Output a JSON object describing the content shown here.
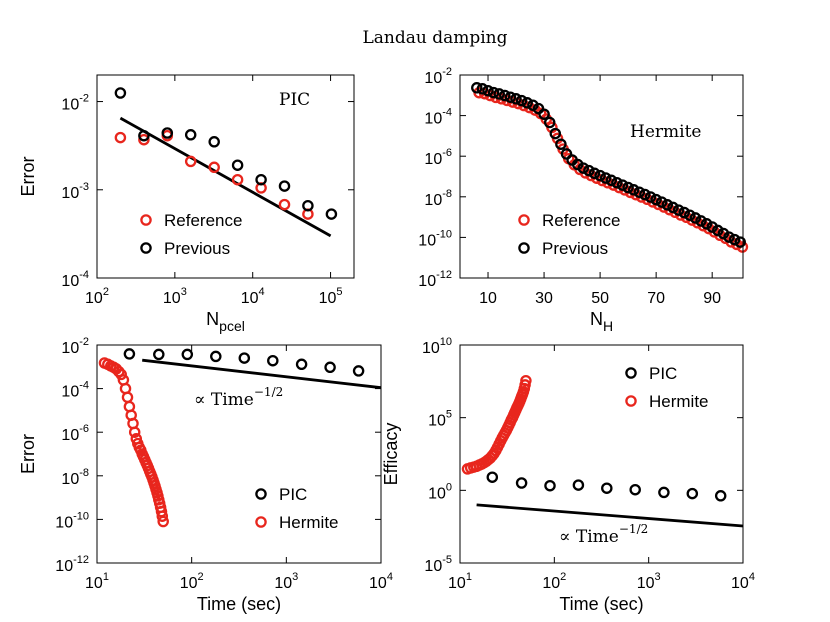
{
  "figure_title": "Landau damping",
  "colors": {
    "red": "#e8261d",
    "black": "#000000"
  },
  "chart_data": [
    {
      "id": "pic_error",
      "type": "scatter",
      "xscale": "log",
      "yscale": "log",
      "xlim": [
        100,
        200000
      ],
      "ylim": [
        0.0001,
        0.02
      ],
      "xticks": [
        100,
        1000,
        10000,
        100000
      ],
      "xtick_labels": [
        {
          "base": "10",
          "exp": "2"
        },
        {
          "base": "10",
          "exp": "3"
        },
        {
          "base": "10",
          "exp": "4"
        },
        {
          "base": "10",
          "exp": "5"
        }
      ],
      "yticks": [
        0.0001,
        0.001,
        0.01
      ],
      "ytick_labels": [
        {
          "base": "10",
          "exp": "-4"
        },
        {
          "base": "10",
          "exp": "-3"
        },
        {
          "base": "10",
          "exp": "-2"
        }
      ],
      "xlabel": {
        "main": "N",
        "sub": "pcel"
      },
      "ylabel": "Error",
      "annotation": "PIC",
      "legend": {
        "position": "bottom-left",
        "entries": [
          "Reference",
          "Previous"
        ]
      },
      "series": [
        {
          "name": "Reference",
          "color": "red",
          "x": [
            200,
            400,
            800,
            1600,
            3200,
            6400,
            12800,
            25600,
            51200
          ],
          "y": [
            0.0039,
            0.0037,
            0.0041,
            0.0021,
            0.0018,
            0.0013,
            0.00105,
            0.00068,
            0.00053
          ]
        },
        {
          "name": "Previous",
          "color": "black",
          "x": [
            200,
            400,
            800,
            1600,
            3200,
            6400,
            12800,
            25600,
            51200,
            102400
          ],
          "y": [
            0.0125,
            0.0041,
            0.0044,
            0.0042,
            0.0035,
            0.0019,
            0.0013,
            0.0011,
            0.00066,
            0.00053
          ]
        }
      ],
      "lines": [
        {
          "x": [
            200,
            100000
          ],
          "y": [
            0.0065,
            0.0003
          ]
        }
      ]
    },
    {
      "id": "hermite_error",
      "type": "scatter",
      "xscale": "linear",
      "yscale": "log",
      "xlim": [
        0,
        101
      ],
      "ylim": [
        1e-12,
        0.01
      ],
      "xticks": [
        10,
        30,
        50,
        70,
        90
      ],
      "xtick_labels": [
        "10",
        "30",
        "50",
        "70",
        "90"
      ],
      "yticks": [
        1e-12,
        1e-10,
        1e-08,
        1e-06,
        0.0001,
        0.01
      ],
      "ytick_labels": [
        {
          "base": "10",
          "exp": "-12"
        },
        {
          "base": "10",
          "exp": "-10"
        },
        {
          "base": "10",
          "exp": "-8"
        },
        {
          "base": "10",
          "exp": "-6"
        },
        {
          "base": "10",
          "exp": "-4"
        },
        {
          "base": "10",
          "exp": "-2"
        }
      ],
      "xlabel": {
        "main": "N",
        "sub": "H"
      },
      "ylabel": "",
      "annotation": "Hermite",
      "legend": {
        "position": "bottom-left",
        "entries": [
          "Reference",
          "Previous"
        ]
      },
      "curve": {
        "x": [
          6,
          8,
          10,
          12,
          14,
          16,
          18,
          20,
          22,
          24,
          26,
          28,
          30,
          32,
          34,
          36,
          38,
          40,
          42,
          44,
          46,
          48,
          50,
          52,
          54,
          56,
          58,
          60,
          62,
          64,
          66,
          68,
          70,
          72,
          74,
          76,
          78,
          80,
          82,
          84,
          86,
          88,
          90,
          92,
          94,
          96,
          98,
          100
        ],
        "y": [
          0.0018,
          0.0016,
          0.0013,
          0.00105,
          0.0009,
          0.00075,
          0.00062,
          0.00052,
          0.00042,
          0.00033,
          0.00025,
          0.00017,
          9e-05,
          3.5e-05,
          1e-05,
          3e-06,
          1e-06,
          5e-07,
          3e-07,
          2e-07,
          1.5e-07,
          1.1e-07,
          8.5e-08,
          6.5e-08,
          5e-08,
          3.8e-08,
          2.9e-08,
          2.2e-08,
          1.7e-08,
          1.3e-08,
          1e-08,
          7.5e-09,
          5.6e-09,
          4.2e-09,
          3.1e-09,
          2.3e-09,
          1.7e-09,
          1.3e-09,
          9.5e-10,
          7e-10,
          5e-10,
          3.6e-10,
          2.5e-10,
          1.7e-10,
          1.2e-10,
          8e-11,
          6e-11,
          4.5e-11
        ]
      },
      "series": [
        {
          "name": "Reference",
          "color": "red",
          "x_offset": 0.8,
          "y_factor": 0.75
        },
        {
          "name": "Previous",
          "color": "black",
          "x_offset": 0,
          "y_factor": 1.3
        }
      ]
    },
    {
      "id": "time_error",
      "type": "scatter",
      "xscale": "log",
      "yscale": "log",
      "xlim": [
        10,
        10000
      ],
      "ylim": [
        1e-12,
        0.01
      ],
      "xticks": [
        10,
        100,
        1000,
        10000
      ],
      "xtick_labels": [
        {
          "base": "10",
          "exp": "1"
        },
        {
          "base": "10",
          "exp": "2"
        },
        {
          "base": "10",
          "exp": "3"
        },
        {
          "base": "10",
          "exp": "4"
        }
      ],
      "yticks": [
        1e-12,
        1e-10,
        1e-08,
        1e-06,
        0.0001,
        0.01
      ],
      "ytick_labels": [
        {
          "base": "10",
          "exp": "-12"
        },
        {
          "base": "10",
          "exp": "-10"
        },
        {
          "base": "10",
          "exp": "-8"
        },
        {
          "base": "10",
          "exp": "-6"
        },
        {
          "base": "10",
          "exp": "-4"
        },
        {
          "base": "10",
          "exp": "-2"
        }
      ],
      "xlabel": "Time (sec)",
      "ylabel": "Error",
      "annotation": {
        "main": "∝ Time",
        "sup": "−1/2"
      },
      "legend": {
        "position": "bottom-right",
        "entries": [
          "PIC",
          "Hermite"
        ]
      },
      "series": [
        {
          "name": "PIC",
          "color": "black",
          "x": [
            22,
            45,
            90,
            180,
            360,
            720,
            1450,
            2900,
            5800
          ],
          "y": [
            0.0039,
            0.0037,
            0.0037,
            0.003,
            0.0025,
            0.0019,
            0.0013,
            0.00095,
            0.00065
          ]
        },
        {
          "name": "Hermite",
          "color": "red",
          "x": [
            12,
            13,
            14,
            15,
            16,
            17,
            18,
            19,
            20,
            21,
            22,
            23,
            24,
            25,
            26,
            27,
            28,
            29,
            30,
            31,
            32,
            33,
            34,
            35,
            36,
            37,
            38,
            39,
            40,
            41,
            42,
            43,
            44,
            45,
            46,
            47,
            48,
            49,
            50
          ],
          "y": [
            0.0015,
            0.0013,
            0.0011,
            0.00095,
            0.0008,
            0.0006,
            0.00045,
            0.00025,
            0.0001,
            4e-05,
            1.5e-05,
            6e-06,
            2.5e-06,
            1e-06,
            5e-07,
            3e-07,
            2e-07,
            1.5e-07,
            1e-07,
            7.5e-08,
            5.5e-08,
            4e-08,
            3e-08,
            2.2e-08,
            1.6e-08,
            1.2e-08,
            9e-09,
            6.5e-09,
            4.7e-09,
            3.4e-09,
            2.4e-09,
            1.7e-09,
            1.2e-09,
            8e-10,
            5.5e-10,
            3.6e-10,
            2.3e-10,
            1.4e-10,
            8e-11
          ]
        }
      ],
      "lines": [
        {
          "x": [
            30,
            10000
          ],
          "y": [
            0.002,
            0.00011
          ]
        }
      ]
    },
    {
      "id": "efficacy",
      "type": "scatter",
      "xscale": "log",
      "yscale": "log",
      "xlim": [
        10,
        10000
      ],
      "ylim": [
        1e-05,
        10000000000
      ],
      "xticks": [
        10,
        100,
        1000,
        10000
      ],
      "xtick_labels": [
        {
          "base": "10",
          "exp": "1"
        },
        {
          "base": "10",
          "exp": "2"
        },
        {
          "base": "10",
          "exp": "3"
        },
        {
          "base": "10",
          "exp": "4"
        }
      ],
      "yticks": [
        1e-05,
        1,
        100000,
        10000000000
      ],
      "ytick_labels": [
        {
          "base": "10",
          "exp": "-5"
        },
        {
          "base": "10",
          "exp": "0"
        },
        {
          "base": "10",
          "exp": "5"
        },
        {
          "base": "10",
          "exp": "10"
        }
      ],
      "xlabel": "Time (sec)",
      "ylabel": "Efficacy",
      "annotation": {
        "main": "∝ Time",
        "sup": "−1/2"
      },
      "legend": {
        "position": "top-right",
        "entries": [
          "PIC",
          "Hermite"
        ]
      },
      "series": [
        {
          "name": "PIC",
          "color": "black",
          "x": [
            22,
            45,
            90,
            180,
            360,
            720,
            1450,
            2900,
            5800
          ],
          "y": [
            8,
            3.2,
            2.1,
            2.3,
            1.4,
            1.1,
            0.72,
            0.6,
            0.42
          ]
        },
        {
          "name": "Hermite",
          "color": "red",
          "x": [
            12,
            13,
            14,
            15,
            16,
            17,
            18,
            19,
            20,
            21,
            22,
            23,
            24,
            25,
            26,
            27,
            28,
            29,
            30,
            31,
            32,
            33,
            34,
            35,
            36,
            37,
            38,
            39,
            40,
            41,
            42,
            43,
            44,
            45,
            46,
            47,
            48,
            49,
            50
          ],
          "y": [
            30,
            35,
            40,
            45,
            55,
            65,
            80,
            100,
            130,
            170,
            240,
            350,
            550,
            900,
            1500,
            2500,
            4000,
            6000,
            9000,
            13000,
            20000,
            30000,
            45000,
            70000,
            100000,
            150000,
            220000,
            320000,
            460000,
            650000,
            900000,
            1300000,
            1900000,
            2800000,
            4000000,
            6000000,
            10000000,
            18000000,
            35000000
          ]
        }
      ],
      "lines": [
        {
          "x": [
            15,
            10000
          ],
          "y": [
            0.1,
            0.0035
          ]
        }
      ]
    }
  ]
}
